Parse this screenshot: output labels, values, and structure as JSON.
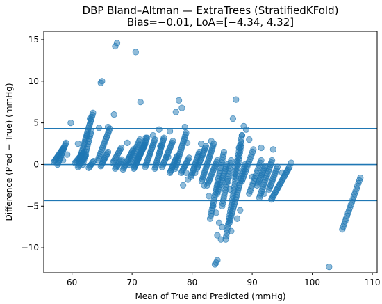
{
  "chart_data": {
    "type": "scatter",
    "title": "DBP Bland–Altman — ExtraTrees (StratifiedKFold)",
    "subtitle": "Bias=−0.01, LoA=[−4.34, 4.32]",
    "xlabel": "Mean of True and Predicted (mmHg)",
    "ylabel": "Difference (Pred − True) (mmHg)",
    "xlim": [
      55.3,
      110.8
    ],
    "ylim": [
      -13.0,
      16.0
    ],
    "xticks": [
      60,
      70,
      80,
      90,
      100,
      110
    ],
    "yticks": [
      -10,
      -5,
      0,
      5,
      10,
      15
    ],
    "grid": false,
    "color": "#1f77b4",
    "hlines": [
      {
        "y": -0.01
      },
      {
        "y": 4.32
      },
      {
        "y": -4.34
      }
    ],
    "streaks": [
      {
        "x0": 57.0,
        "y0": 0.3,
        "x1": 58.6,
        "y1": 2.0,
        "n": 14
      },
      {
        "x0": 57.6,
        "y0": 0.0,
        "x1": 59.0,
        "y1": 2.6,
        "n": 14
      },
      {
        "x0": 60.5,
        "y0": 0.2,
        "x1": 62.0,
        "y1": 1.5,
        "n": 10
      },
      {
        "x0": 61.0,
        "y0": -0.3,
        "x1": 62.3,
        "y1": 1.1,
        "n": 10
      },
      {
        "x0": 61.2,
        "y0": 0.4,
        "x1": 63.5,
        "y1": 6.2,
        "n": 24
      },
      {
        "x0": 61.8,
        "y0": 0.0,
        "x1": 63.2,
        "y1": 4.0,
        "n": 14
      },
      {
        "x0": 62.8,
        "y0": -0.4,
        "x1": 63.6,
        "y1": 0.4,
        "n": 6
      },
      {
        "x0": 64.3,
        "y0": 0.5,
        "x1": 66.3,
        "y1": 4.3,
        "n": 16
      },
      {
        "x0": 64.8,
        "y0": -0.2,
        "x1": 66.0,
        "y1": 1.5,
        "n": 10
      },
      {
        "x0": 66.8,
        "y0": 0.2,
        "x1": 68.2,
        "y1": 2.0,
        "n": 10
      },
      {
        "x0": 67.2,
        "y0": -0.5,
        "x1": 68.3,
        "y1": 0.6,
        "n": 8
      },
      {
        "x0": 68.5,
        "y0": -0.6,
        "x1": 70.2,
        "y1": 1.8,
        "n": 14
      },
      {
        "x0": 69.5,
        "y0": 0.0,
        "x1": 71.3,
        "y1": 3.0,
        "n": 14
      },
      {
        "x0": 70.3,
        "y0": -0.5,
        "x1": 72.2,
        "y1": 2.5,
        "n": 22
      },
      {
        "x0": 70.8,
        "y0": 0.5,
        "x1": 72.5,
        "y1": 3.2,
        "n": 14
      },
      {
        "x0": 72.2,
        "y0": -0.3,
        "x1": 73.8,
        "y1": 3.0,
        "n": 16
      },
      {
        "x0": 73.8,
        "y0": -0.5,
        "x1": 75.3,
        "y1": 3.2,
        "n": 18
      },
      {
        "x0": 75.0,
        "y0": -0.3,
        "x1": 76.8,
        "y1": 2.8,
        "n": 16
      },
      {
        "x0": 76.3,
        "y0": -1.0,
        "x1": 77.5,
        "y1": 1.0,
        "n": 12
      },
      {
        "x0": 77.2,
        "y0": -0.5,
        "x1": 79.0,
        "y1": 3.8,
        "n": 18
      },
      {
        "x0": 78.2,
        "y0": -1.0,
        "x1": 79.5,
        "y1": 0.8,
        "n": 10
      },
      {
        "x0": 79.8,
        "y0": -1.5,
        "x1": 81.2,
        "y1": 1.5,
        "n": 14
      },
      {
        "x0": 80.8,
        "y0": -0.5,
        "x1": 82.3,
        "y1": 2.2,
        "n": 14
      },
      {
        "x0": 81.6,
        "y0": -2.0,
        "x1": 83.6,
        "y1": 2.5,
        "n": 20
      },
      {
        "x0": 82.5,
        "y0": -2.5,
        "x1": 84.2,
        "y1": 0.5,
        "n": 14
      },
      {
        "x0": 83.0,
        "y0": -6.5,
        "x1": 85.3,
        "y1": 1.5,
        "n": 26
      },
      {
        "x0": 84.2,
        "y0": -3.5,
        "x1": 85.8,
        "y1": 0.0,
        "n": 14
      },
      {
        "x0": 85.0,
        "y0": -5.0,
        "x1": 86.5,
        "y1": 0.5,
        "n": 18
      },
      {
        "x0": 85.6,
        "y0": -9.0,
        "x1": 88.2,
        "y1": 2.5,
        "n": 32
      },
      {
        "x0": 86.2,
        "y0": -7.0,
        "x1": 88.8,
        "y1": 0.0,
        "n": 26
      },
      {
        "x0": 87.0,
        "y0": -1.5,
        "x1": 88.3,
        "y1": 3.5,
        "n": 14
      },
      {
        "x0": 88.3,
        "y0": -2.0,
        "x1": 90.2,
        "y1": 1.8,
        "n": 14
      },
      {
        "x0": 89.5,
        "y0": -3.5,
        "x1": 91.5,
        "y1": 0.5,
        "n": 14
      },
      {
        "x0": 90.8,
        "y0": -2.5,
        "x1": 92.2,
        "y1": -0.2,
        "n": 12
      },
      {
        "x0": 91.2,
        "y0": -4.0,
        "x1": 93.3,
        "y1": 0.5,
        "n": 18
      },
      {
        "x0": 92.8,
        "y0": -3.0,
        "x1": 94.2,
        "y1": -0.3,
        "n": 12
      },
      {
        "x0": 93.2,
        "y0": -4.2,
        "x1": 96.2,
        "y1": -0.3,
        "n": 22
      },
      {
        "x0": 105.0,
        "y0": -7.8,
        "x1": 108.0,
        "y1": -1.6,
        "n": 20
      }
    ],
    "points": [
      [
        58.5,
        0.5
      ],
      [
        59.2,
        1.2
      ],
      [
        59.8,
        5.0
      ],
      [
        61.5,
        1.0
      ],
      [
        62.5,
        3.5
      ],
      [
        63.0,
        5.5
      ],
      [
        64.5,
        4.4
      ],
      [
        64.8,
        9.8
      ],
      [
        65.0,
        10.0
      ],
      [
        66.0,
        4.5
      ],
      [
        67.2,
        14.2
      ],
      [
        67.5,
        14.6
      ],
      [
        67.0,
        6.0
      ],
      [
        70.6,
        13.5
      ],
      [
        71.4,
        7.5
      ],
      [
        72.3,
        3.2
      ],
      [
        73.5,
        3.5
      ],
      [
        74.5,
        4.2
      ],
      [
        76.3,
        4.0
      ],
      [
        77.3,
        6.3
      ],
      [
        77.8,
        7.7
      ],
      [
        78.3,
        6.8
      ],
      [
        78.8,
        4.5
      ],
      [
        79.2,
        2.6
      ],
      [
        79.0,
        -1.0
      ],
      [
        78.5,
        -2.5
      ],
      [
        79.3,
        -1.8
      ],
      [
        81.5,
        2.5
      ],
      [
        83.2,
        2.8
      ],
      [
        84.2,
        -2.5
      ],
      [
        82.8,
        -3.8
      ],
      [
        83.5,
        -5.0
      ],
      [
        84.0,
        -5.8
      ],
      [
        84.5,
        -7.0
      ],
      [
        84.2,
        -8.5
      ],
      [
        85.0,
        -7.5
      ],
      [
        84.8,
        -9.0
      ],
      [
        86.5,
        -8.0
      ],
      [
        87.8,
        2.0
      ],
      [
        88.3,
        3.5
      ],
      [
        87.3,
        7.8
      ],
      [
        89.5,
        3.0
      ],
      [
        88.0,
        -5.5
      ],
      [
        87.5,
        -6.5
      ],
      [
        83.8,
        -12.0
      ],
      [
        84.2,
        -11.5
      ],
      [
        84.0,
        -11.8
      ],
      [
        102.8,
        -12.3
      ],
      [
        86.0,
        -2.0
      ],
      [
        86.3,
        -3.0
      ],
      [
        80.5,
        -1.0
      ],
      [
        82.0,
        -2.5
      ],
      [
        90.0,
        -1.5
      ],
      [
        91.5,
        2.0
      ],
      [
        92.0,
        -3.5
      ],
      [
        93.5,
        1.8
      ],
      [
        95.0,
        -1.0
      ],
      [
        96.5,
        0.2
      ],
      [
        61.0,
        2.5
      ],
      [
        65.3,
        0.6
      ],
      [
        69.2,
        2.6
      ],
      [
        74.7,
        2.2
      ],
      [
        76.0,
        0.9
      ],
      [
        86.8,
        5.5
      ],
      [
        88.6,
        4.6
      ],
      [
        89.0,
        4.2
      ]
    ]
  }
}
